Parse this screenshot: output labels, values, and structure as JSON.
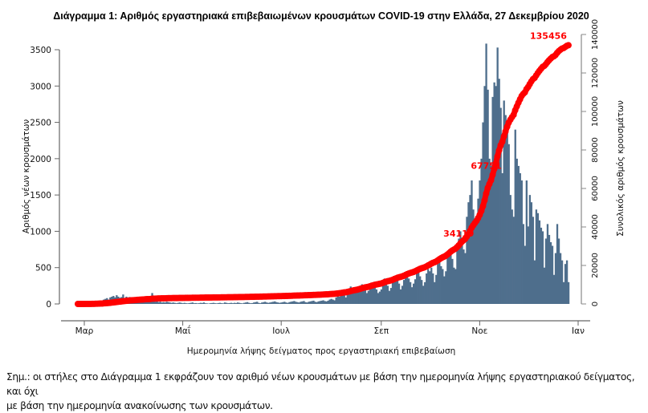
{
  "chart_data": {
    "type": "bar+line",
    "title": "Διάγραμμα 1: Αριθμός εργαστηριακά επιβεβαιωμένων κρουσμάτων COVID-19 στην Ελλάδα, 27 Δεκεμβρίου 2020",
    "xlabel": "Ημερομηνία λήψης δείγματος προς εργαστηριακή επιβεβαίωση",
    "ylabel_left": "Αριθμός νέων κρουσμάτων",
    "ylabel_right": "Συνολικός αριθμός κρουσμάτων",
    "x_ticks": [
      "Μαρ",
      "Μαΐ",
      "Ιουλ",
      "Σεπ",
      "Νοε",
      "Ιαν"
    ],
    "x_tick_dates": [
      "2020-03-01",
      "2020-05-01",
      "2020-07-01",
      "2020-09-01",
      "2020-11-01",
      "2021-01-01"
    ],
    "y_left_ticks": [
      "0",
      "500",
      "1000",
      "1500",
      "2000",
      "2500",
      "3000",
      "3500"
    ],
    "y_left_range": [
      0,
      3500
    ],
    "y_right_ticks": [
      "0",
      "20000",
      "40000",
      "60000",
      "80000",
      "100000",
      "120000",
      "140000"
    ],
    "y_right_range": [
      0,
      140000
    ],
    "grid": false,
    "colors": {
      "bars": "#4e6e8c",
      "cumulative": "#ff0000"
    },
    "daily_new_cases_by_month": [
      {
        "month": "2020-02",
        "first_day": 26,
        "values": [
          1,
          2,
          0,
          1
        ]
      },
      {
        "month": "2020-03",
        "first_day": 1,
        "values": [
          2,
          3,
          4,
          2,
          5,
          10,
          20,
          30,
          40,
          25,
          40,
          45,
          60,
          70,
          80,
          60,
          90,
          100,
          110,
          90,
          120,
          100,
          85,
          95,
          130,
          80,
          100,
          90,
          95,
          70,
          60
        ]
      },
      {
        "month": "2020-04",
        "first_day": 1,
        "values": [
          70,
          60,
          80,
          65,
          55,
          50,
          60,
          70,
          55,
          40,
          45,
          150,
          35,
          30,
          40,
          25,
          30,
          20,
          25,
          20,
          30,
          25,
          20,
          15,
          20,
          15,
          10,
          15,
          20,
          15
        ]
      },
      {
        "month": "2020-05",
        "first_day": 1,
        "values": [
          10,
          15,
          10,
          8,
          12,
          15,
          20,
          10,
          12,
          8,
          10,
          15,
          12,
          20,
          10,
          8,
          5,
          10,
          12,
          15,
          10,
          8,
          12,
          15,
          10,
          8,
          20,
          15,
          10,
          12,
          15
        ]
      },
      {
        "month": "2020-06",
        "first_day": 1,
        "values": [
          10,
          15,
          12,
          20,
          15,
          10,
          8,
          15,
          20,
          25,
          15,
          10,
          12,
          20,
          25,
          30,
          15,
          10,
          20,
          25,
          30,
          20,
          15,
          20,
          25,
          30,
          35,
          25,
          20,
          15
        ]
      },
      {
        "month": "2020-07",
        "first_day": 1,
        "values": [
          20,
          25,
          30,
          20,
          15,
          25,
          30,
          35,
          40,
          30,
          25,
          20,
          30,
          35,
          40,
          25,
          20,
          30,
          35,
          40,
          45,
          30,
          25,
          35,
          40,
          45,
          50,
          40,
          35,
          45,
          60
        ]
      },
      {
        "month": "2020-08",
        "first_day": 1,
        "values": [
          70,
          60,
          50,
          90,
          110,
          100,
          120,
          150,
          130,
          90,
          180,
          200,
          240,
          210,
          190,
          150,
          160,
          230,
          250,
          270,
          240,
          200,
          150,
          180,
          260,
          290,
          250,
          220,
          200,
          150,
          170
        ]
      },
      {
        "month": "2020-09",
        "first_day": 1,
        "values": [
          200,
          300,
          350,
          280,
          250,
          180,
          220,
          300,
          380,
          350,
          320,
          280,
          200,
          250,
          330,
          400,
          420,
          350,
          300,
          230,
          280,
          340,
          420,
          450,
          380,
          330,
          250,
          300,
          420,
          480
        ]
      },
      {
        "month": "2020-10",
        "first_day": 1,
        "values": [
          450,
          500,
          420,
          300,
          400,
          550,
          600,
          520,
          480,
          380,
          450,
          650,
          700,
          750,
          620,
          500,
          480,
          800,
          900,
          1000,
          900,
          750,
          700,
          1200,
          1400,
          1500,
          1700,
          1300,
          1150,
          1100,
          1450
        ]
      },
      {
        "month": "2020-11",
        "first_day": 1,
        "values": [
          1700,
          2000,
          2500,
          3000,
          3584,
          2950,
          2000,
          1900,
          2850,
          3050,
          3000,
          3530,
          3100,
          2700,
          1800,
          2800,
          2600,
          2400,
          2200,
          1500,
          1300,
          1200,
          2400,
          2000,
          1900,
          1800,
          1700,
          1100,
          800,
          1700
        ]
      },
      {
        "month": "2020-12",
        "first_day": 1,
        "values": [
          1067,
          1500,
          1400,
          1200,
          600,
          1300,
          1250,
          1150,
          1050,
          1000,
          500,
          900,
          1100,
          950,
          850,
          800,
          400,
          700,
          1100,
          900,
          700,
          600,
          300,
          550,
          600,
          300
        ]
      }
    ],
    "cumulative_labels": [
      {
        "text": "34119",
        "value": 34119
      },
      {
        "text": "67751",
        "value": 67751
      },
      {
        "text": "135456",
        "value": 135456
      }
    ]
  },
  "note": {
    "line1": "Σημ.: οι στήλες στο Διάγραμμα 1 εκφράζουν τον αριθμό νέων κρουσμάτων με βάση την ημερομηνία λήψης εργαστηριακού δείγματος, και όχι",
    "line2": "με βάση την ημερομηνία ανακοίνωσης των κρουσμάτων."
  }
}
